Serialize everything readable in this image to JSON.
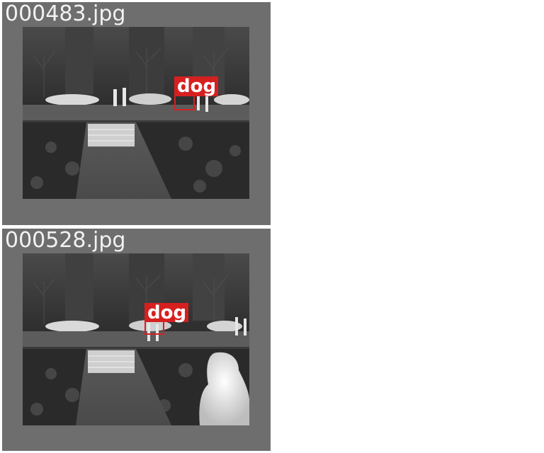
{
  "images": [
    {
      "filename": "000483.jpg",
      "detections": [
        {
          "label": "dog"
        }
      ]
    },
    {
      "filename": "000528.jpg",
      "detections": [
        {
          "label": "dog"
        }
      ]
    }
  ],
  "colors": {
    "tile_background": "#6e6e6e",
    "filename_text": "#f2f2f2",
    "detection": "#d62020"
  }
}
